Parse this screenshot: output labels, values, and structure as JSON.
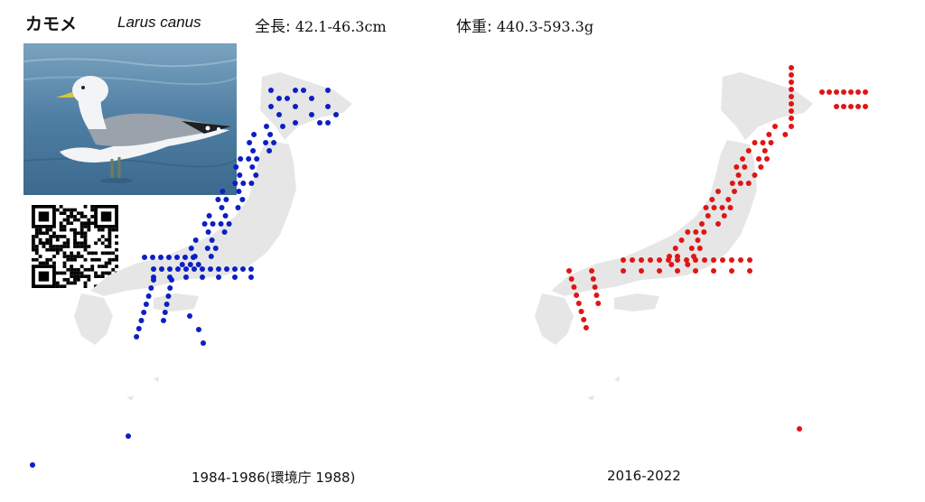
{
  "species": {
    "name_ja": "カモメ",
    "name_sci": "Larus canus",
    "length_label": "全長:",
    "length_value": "42.1-46.3cm",
    "weight_label": "体重:",
    "weight_value": "440.3-593.3g"
  },
  "maps": [
    {
      "caption": "1984-1986(環境庁 1988)",
      "dot_color": "#0c1fc4"
    },
    {
      "caption": "2016-2022",
      "dot_color": "#e01515"
    }
  ]
}
